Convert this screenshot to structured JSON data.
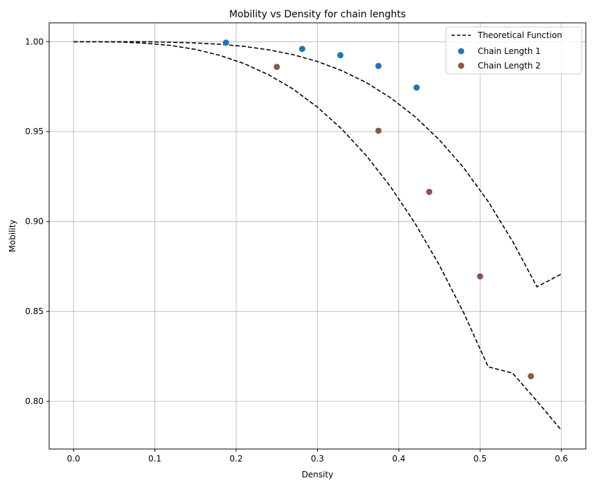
{
  "chart_data": {
    "type": "scatter",
    "title": "Mobility vs Density for chain lenghts",
    "xlabel": "Density",
    "ylabel": "Mobility",
    "xlim": [
      -0.03,
      0.63
    ],
    "ylim": [
      0.7735,
      1.0105
    ],
    "xticks": [
      0.0,
      0.1,
      0.2,
      0.3,
      0.4,
      0.5,
      0.6
    ],
    "xtick_labels": [
      "0.0",
      "0.1",
      "0.2",
      "0.3",
      "0.4",
      "0.5",
      "0.6"
    ],
    "yticks": [
      0.8,
      0.85,
      0.9,
      0.95,
      1.0
    ],
    "ytick_labels": [
      "0.80",
      "0.85",
      "0.90",
      "0.95",
      "1.00"
    ],
    "grid": true,
    "legend_position": "top-right",
    "lines": [
      {
        "name": "Theoretical Function",
        "style": "dashed",
        "color": "#000000",
        "x": [
          0.0,
          0.03,
          0.06,
          0.09,
          0.12,
          0.15,
          0.18,
          0.21,
          0.24,
          0.27,
          0.3,
          0.33,
          0.36,
          0.39,
          0.42,
          0.45,
          0.48,
          0.51,
          0.54,
          0.57,
          0.6
        ],
        "y": [
          1.0,
          1.0,
          1.0,
          1.0,
          0.9997,
          0.9993,
          0.9986,
          0.9974,
          0.9955,
          0.9928,
          0.989,
          0.9839,
          0.9773,
          0.9688,
          0.9583,
          0.9454,
          0.9298,
          0.9111,
          0.889,
          0.8637,
          0.8708
        ]
      },
      {
        "name": "",
        "style": "dashed",
        "color": "#000000",
        "x": [
          0.0,
          0.03,
          0.06,
          0.09,
          0.12,
          0.15,
          0.18,
          0.21,
          0.24,
          0.27,
          0.3,
          0.33,
          0.36,
          0.39,
          0.42,
          0.45,
          0.48,
          0.51,
          0.54,
          0.57,
          0.6
        ],
        "y": [
          1.0,
          1.0,
          0.9998,
          0.9991,
          0.9979,
          0.9957,
          0.9924,
          0.9878,
          0.9816,
          0.9737,
          0.9636,
          0.9514,
          0.9367,
          0.9193,
          0.899,
          0.8757,
          0.8491,
          0.8192,
          0.8157,
          0.8001,
          0.784
        ]
      }
    ],
    "series": [
      {
        "name": "Chain Length 1",
        "color": "#1f77b4",
        "x": [
          0.1875,
          0.28125,
          0.328125,
          0.375,
          0.421875
        ],
        "y": [
          0.9995,
          0.996,
          0.9925,
          0.9865,
          0.9745
        ]
      },
      {
        "name": "Chain Length 2",
        "color": "#8c564b",
        "x": [
          0.25,
          0.375,
          0.4375,
          0.5,
          0.5625
        ],
        "y": [
          0.986,
          0.9505,
          0.9165,
          0.8695,
          0.814
        ]
      }
    ]
  }
}
